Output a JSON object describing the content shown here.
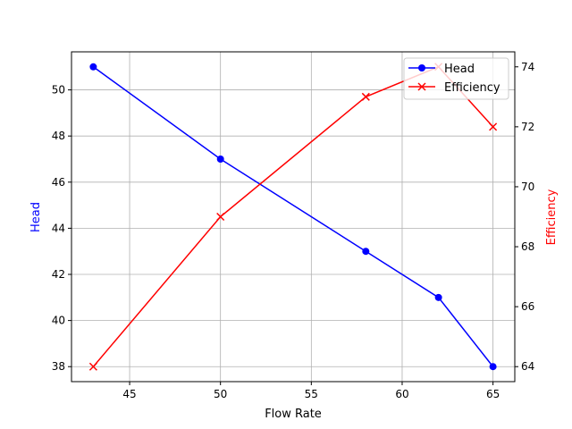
{
  "chart_data": {
    "type": "line",
    "x": [
      43,
      50,
      58,
      62,
      65
    ],
    "xlabel": "Flow Rate",
    "xlim": [
      41.8,
      66.2
    ],
    "xticks": [
      45,
      50,
      55,
      60,
      65
    ],
    "grid": true,
    "legend_position": "top-right",
    "axes": [
      {
        "side": "left",
        "ylabel": "Head",
        "color": "#0000ff",
        "ylim": [
          37.35,
          51.65
        ],
        "yticks": [
          38,
          40,
          42,
          44,
          46,
          48,
          50
        ]
      },
      {
        "side": "right",
        "ylabel": "Efficiency",
        "color": "#ff0000",
        "ylim": [
          63.5,
          74.5
        ],
        "yticks": [
          64,
          66,
          68,
          70,
          72,
          74
        ]
      }
    ],
    "series": [
      {
        "name": "Head",
        "axis": "left",
        "color": "#0000ff",
        "marker": "circle",
        "values": [
          51,
          47,
          43,
          41,
          38
        ]
      },
      {
        "name": "Efficiency",
        "axis": "right",
        "color": "#ff0000",
        "marker": "x",
        "values": [
          64,
          69,
          73,
          74,
          72
        ]
      }
    ]
  }
}
